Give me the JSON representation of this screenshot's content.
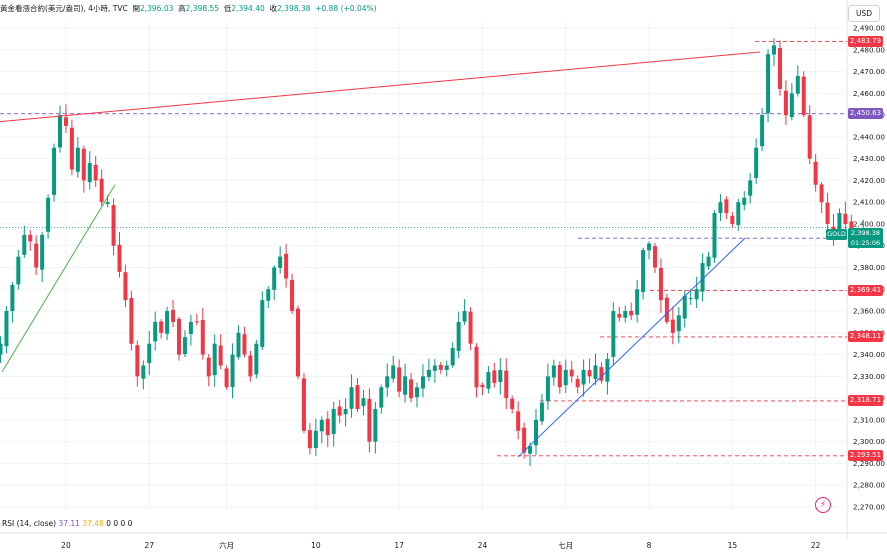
{
  "header": {
    "symbol": "黃金看漲合約(美元/盎司)",
    "interval": "4小時",
    "source": "TVC",
    "open_label": "開",
    "open": "2,396.03",
    "high_label": "高",
    "high": "2,398.55",
    "low_label": "低",
    "low": "2,394.40",
    "close_label": "收",
    "close": "2,398.38",
    "change": "+0.88 (+0.04%)"
  },
  "currency": "USD",
  "rsi": {
    "label": "RSI (14, close)",
    "v1": "37.11",
    "v2": "37.48",
    "zeros": "0 0 0 0"
  },
  "symbol_tag": "GOLD",
  "price_tag": {
    "price": "2,398.38",
    "countdown": "01:25:06"
  },
  "chart_data": {
    "type": "candlestick",
    "y_ticks": [
      "2,490.00",
      "2,480.00",
      "2,470.00",
      "2,460.00",
      "2,450.00",
      "2,440.00",
      "2,430.00",
      "2,420.00",
      "2,410.00",
      "2,400.00",
      "2,390.00",
      "2,380.00",
      "2,370.00",
      "2,360.00",
      "2,350.00",
      "2,340.00",
      "2,330.00",
      "2,320.00",
      "2,310.00",
      "2,300.00",
      "2,290.00",
      "2,280.00",
      "2,270.00"
    ],
    "y_tick_values": [
      2490,
      2480,
      2470,
      2460,
      2450,
      2440,
      2430,
      2420,
      2410,
      2400,
      2390,
      2380,
      2370,
      2360,
      2350,
      2340,
      2330,
      2320,
      2310,
      2300,
      2290,
      2280,
      2270
    ],
    "ylim": [
      2266,
      2495
    ],
    "x_labels": [
      {
        "label": "20",
        "slot": 11
      },
      {
        "label": "27",
        "slot": 25
      },
      {
        "label": "六月",
        "slot": 38
      },
      {
        "label": "10",
        "slot": 53
      },
      {
        "label": "17",
        "slot": 67
      },
      {
        "label": "24",
        "slot": 81
      },
      {
        "label": "七月",
        "slot": 95
      },
      {
        "label": "8",
        "slot": 109
      },
      {
        "label": "15",
        "slot": 123
      },
      {
        "label": "22",
        "slot": 137
      }
    ],
    "close_path": [
      2345,
      2360,
      2372,
      2385,
      2395,
      2392,
      2380,
      2395,
      2412,
      2435,
      2450,
      2445,
      2425,
      2435,
      2420,
      2428,
      2420,
      2410,
      2410,
      2390,
      2378,
      2365,
      2345,
      2330,
      2335,
      2345,
      2355,
      2350,
      2360,
      2355,
      2340,
      2348,
      2355,
      2355,
      2340,
      2330,
      2345,
      2335,
      2325,
      2340,
      2350,
      2340,
      2330,
      2345,
      2365,
      2370,
      2380,
      2385,
      2375,
      2360,
      2330,
      2305,
      2297,
      2305,
      2310,
      2303,
      2315,
      2312,
      2315,
      2325,
      2315,
      2320,
      2300,
      2315,
      2325,
      2330,
      2335,
      2323,
      2330,
      2320,
      2325,
      2330,
      2333,
      2335,
      2333,
      2335,
      2343,
      2355,
      2360,
      2345,
      2325,
      2325,
      2332,
      2327,
      2333,
      2320,
      2315,
      2305,
      2295,
      2298,
      2310,
      2318,
      2330,
      2335,
      2325,
      2333,
      2330,
      2325,
      2333,
      2330,
      2335,
      2328,
      2338,
      2360,
      2357,
      2360,
      2358,
      2370,
      2388,
      2391,
      2380,
      2365,
      2355,
      2350,
      2358,
      2367,
      2366,
      2370,
      2382,
      2385,
      2405,
      2410,
      2405,
      2400,
      2410,
      2412,
      2420,
      2435,
      2450,
      2478,
      2482,
      2462,
      2450,
      2460,
      2468,
      2450,
      2430,
      2418,
      2410,
      2400,
      2395,
      2405,
      2400,
      2393,
      2396,
      2398
    ],
    "lines": [
      {
        "type": "horizontal",
        "price": 2483.79,
        "label": "2,483.79",
        "style": "dashed",
        "color": "#f23645",
        "tag_color": "#f23645"
      },
      {
        "type": "horizontal",
        "price": 2450.63,
        "label": "2,450.63",
        "style": "dashed",
        "color": "#7e57c2",
        "tag_color": "#7e57c2"
      },
      {
        "type": "horizontal",
        "price": 2393.47,
        "label": "2,393.47",
        "style": "dashed",
        "color": "#7e57c2",
        "tag_color": "#7e57c2"
      },
      {
        "type": "horizontal",
        "price": 2369.41,
        "label": "2,369.41",
        "style": "dashed",
        "color": "#f23645",
        "tag_color": "#f23645"
      },
      {
        "type": "horizontal",
        "price": 2348.11,
        "label": "2,348.11",
        "style": "dashed",
        "color": "#f23645",
        "tag_color": "#f23645"
      },
      {
        "type": "horizontal",
        "price": 2318.71,
        "label": "2,318.71",
        "style": "dashed",
        "color": "#f23645",
        "tag_color": "#f23645"
      },
      {
        "type": "horizontal",
        "price": 2293.51,
        "label": "2,293.51",
        "style": "dashed",
        "color": "#f23645",
        "tag_color": "#f23645"
      }
    ],
    "colors": {
      "up": "#089981",
      "down": "#f23645",
      "resistance": "#f23645",
      "support_early": "#4caf50",
      "support_late": "#2962ff"
    }
  }
}
